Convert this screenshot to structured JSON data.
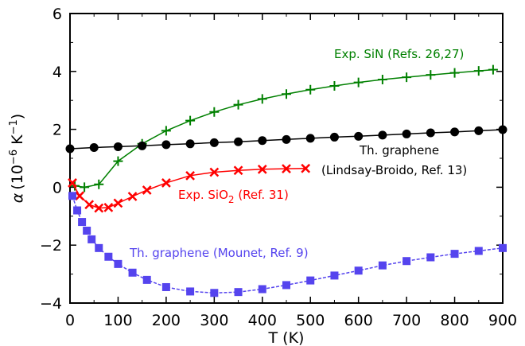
{
  "chart_data": {
    "type": "line",
    "xlabel": "T (K)",
    "ylabel": {
      "symbol": "α",
      "text": "(10",
      "exp1": "−6",
      "mid": " K",
      "exp2": "−1",
      "close": ")"
    },
    "xlim": [
      0,
      900
    ],
    "ylim": [
      -4,
      6
    ],
    "x_ticks": [
      0,
      100,
      200,
      300,
      400,
      500,
      600,
      700,
      800,
      900
    ],
    "y_ticks": [
      -4,
      -2,
      0,
      2,
      4,
      6
    ],
    "x_tick_labels": [
      "0",
      "100",
      "200",
      "300",
      "400",
      "500",
      "600",
      "700",
      "800",
      "900"
    ],
    "y_tick_labels": [
      "−4",
      "−2",
      "0",
      "2",
      "4",
      "6"
    ],
    "grid": false,
    "legend": "none",
    "series": [
      {
        "name": "Exp. SiN (Refs. 26,27)",
        "color": "#008000",
        "marker": "plus",
        "x": [
          10,
          30,
          60,
          100,
          150,
          200,
          250,
          300,
          350,
          400,
          450,
          500,
          550,
          600,
          650,
          700,
          750,
          800,
          850,
          880
        ],
        "y": [
          0.05,
          0.0,
          0.1,
          0.9,
          1.5,
          1.95,
          2.3,
          2.6,
          2.85,
          3.05,
          3.22,
          3.37,
          3.5,
          3.62,
          3.72,
          3.8,
          3.88,
          3.95,
          4.02,
          4.06
        ]
      },
      {
        "name": "Th. graphene (Lindsay-Broido, Ref. 13)",
        "color": "#000000",
        "marker": "circle",
        "x": [
          0,
          50,
          100,
          150,
          200,
          250,
          300,
          350,
          400,
          450,
          500,
          550,
          600,
          650,
          700,
          750,
          800,
          850,
          900
        ],
        "y": [
          1.33,
          1.37,
          1.4,
          1.43,
          1.47,
          1.5,
          1.54,
          1.57,
          1.61,
          1.65,
          1.69,
          1.73,
          1.76,
          1.8,
          1.84,
          1.88,
          1.91,
          1.95,
          1.99
        ]
      },
      {
        "name": "Exp. SiO₂ (Ref. 31)",
        "color": "#ff0000",
        "marker": "x",
        "x": [
          5,
          20,
          40,
          60,
          80,
          100,
          130,
          160,
          200,
          250,
          300,
          350,
          400,
          450,
          490
        ],
        "y": [
          0.15,
          -0.3,
          -0.6,
          -0.72,
          -0.7,
          -0.55,
          -0.32,
          -0.1,
          0.15,
          0.4,
          0.52,
          0.58,
          0.62,
          0.64,
          0.65
        ]
      },
      {
        "name": "Th. graphene (Mounet, Ref. 9)",
        "color": "#5544ee",
        "marker": "square",
        "x": [
          5,
          15,
          25,
          35,
          45,
          60,
          80,
          100,
          130,
          160,
          200,
          250,
          300,
          350,
          400,
          450,
          500,
          550,
          600,
          650,
          700,
          750,
          800,
          850,
          900
        ],
        "y": [
          -0.3,
          -0.8,
          -1.2,
          -1.5,
          -1.8,
          -2.1,
          -2.4,
          -2.65,
          -2.95,
          -3.2,
          -3.45,
          -3.6,
          -3.65,
          -3.62,
          -3.52,
          -3.38,
          -3.22,
          -3.05,
          -2.88,
          -2.7,
          -2.55,
          -2.42,
          -2.3,
          -2.2,
          -2.1
        ]
      }
    ],
    "annotations": {
      "sin": {
        "text": "Exp. SiN (Refs. 26,27)",
        "color": "#008000"
      },
      "lindsay_line1": {
        "text": "Th. graphene",
        "color": "#000000"
      },
      "lindsay_line2": {
        "text": "(Lindsay-Broido, Ref. 13)",
        "color": "#000000"
      },
      "sio2": {
        "text_a": "Exp. SiO",
        "sub": "2",
        "text_b": " (Ref. 31)",
        "color": "#ff0000"
      },
      "mounet": {
        "text": "Th. graphene (Mounet, Ref. 9)",
        "color": "#5544ee"
      }
    }
  }
}
